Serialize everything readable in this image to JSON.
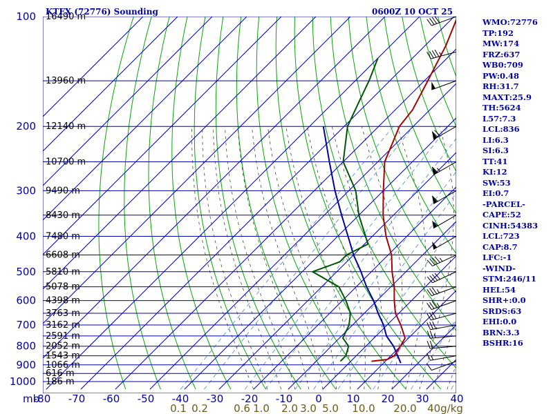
{
  "chart_data": {
    "type": "skew-t sounding",
    "title_left": "KTFX (72776) Sounding",
    "title_right": "0600Z 10 OCT 25",
    "pressure_ticks": [
      100,
      200,
      300,
      400,
      500,
      600,
      700,
      800,
      900,
      1000
    ],
    "pressure_unit_label": "mb",
    "temperature_ticks": [
      -80,
      -70,
      -60,
      -50,
      -40,
      -30,
      -20,
      -10,
      0,
      10,
      20,
      30,
      40
    ],
    "mixing_ratio_labels": [
      "0.1",
      "0.2",
      "0.6",
      "1.0",
      "2.0",
      "3.0",
      "5.0",
      "10.0",
      "20.0",
      "40g/kg"
    ],
    "height_labels": [
      {
        "p": 100,
        "text": "16490 m"
      },
      {
        "p": 150,
        "text": "13960 m"
      },
      {
        "p": 200,
        "text": "12140 m"
      },
      {
        "p": 250,
        "text": "10700 m"
      },
      {
        "p": 300,
        "text": "9490 m"
      },
      {
        "p": 350,
        "text": "8430 m"
      },
      {
        "p": 400,
        "text": "7480 m"
      },
      {
        "p": 450,
        "text": "6608 m"
      },
      {
        "p": 500,
        "text": "5810 m"
      },
      {
        "p": 550,
        "text": "5078 m"
      },
      {
        "p": 600,
        "text": "4398 m"
      },
      {
        "p": 650,
        "text": "3763 m"
      },
      {
        "p": 700,
        "text": "3162 m"
      },
      {
        "p": 750,
        "text": "2591 m"
      },
      {
        "p": 800,
        "text": "2052 m"
      },
      {
        "p": 850,
        "text": "1543 m"
      },
      {
        "p": 900,
        "text": "1066 m"
      },
      {
        "p": 950,
        "text": "616 m"
      },
      {
        "p": 1000,
        "text": "186 m"
      }
    ],
    "temperature_profile": [
      {
        "p": 880,
        "t": 6
      },
      {
        "p": 870,
        "t": 10
      },
      {
        "p": 850,
        "t": 11
      },
      {
        "p": 800,
        "t": 10
      },
      {
        "p": 760,
        "t": 9
      },
      {
        "p": 700,
        "t": 4
      },
      {
        "p": 650,
        "t": -1
      },
      {
        "p": 600,
        "t": -5
      },
      {
        "p": 550,
        "t": -9
      },
      {
        "p": 500,
        "t": -14
      },
      {
        "p": 450,
        "t": -19
      },
      {
        "p": 400,
        "t": -26
      },
      {
        "p": 350,
        "t": -33
      },
      {
        "p": 300,
        "t": -40
      },
      {
        "p": 250,
        "t": -48
      },
      {
        "p": 200,
        "t": -54
      },
      {
        "p": 180,
        "t": -55
      },
      {
        "p": 150,
        "t": -59
      },
      {
        "p": 120,
        "t": -64
      },
      {
        "p": 100,
        "t": -69
      }
    ],
    "dewpoint_profile": [
      {
        "p": 880,
        "t": -3
      },
      {
        "p": 860,
        "t": -3
      },
      {
        "p": 850,
        "t": -3
      },
      {
        "p": 800,
        "t": -5
      },
      {
        "p": 760,
        "t": -9
      },
      {
        "p": 700,
        "t": -11
      },
      {
        "p": 650,
        "t": -14
      },
      {
        "p": 600,
        "t": -19
      },
      {
        "p": 550,
        "t": -25
      },
      {
        "p": 500,
        "t": -37
      },
      {
        "p": 470,
        "t": -32
      },
      {
        "p": 450,
        "t": -32
      },
      {
        "p": 420,
        "t": -29
      },
      {
        "p": 350,
        "t": -40
      },
      {
        "p": 300,
        "t": -48
      },
      {
        "p": 250,
        "t": -60
      },
      {
        "p": 200,
        "t": -69
      },
      {
        "p": 170,
        "t": -73
      },
      {
        "p": 150,
        "t": -76
      },
      {
        "p": 130,
        "t": -80
      }
    ],
    "parcel_profile": [
      {
        "p": 890,
        "t": 15
      },
      {
        "p": 850,
        "t": 12
      },
      {
        "p": 800,
        "t": 8
      },
      {
        "p": 750,
        "t": 3
      },
      {
        "p": 700,
        "t": -1
      },
      {
        "p": 650,
        "t": -6
      },
      {
        "p": 600,
        "t": -11
      },
      {
        "p": 550,
        "t": -17
      },
      {
        "p": 500,
        "t": -23
      },
      {
        "p": 450,
        "t": -30
      },
      {
        "p": 400,
        "t": -37
      },
      {
        "p": 350,
        "t": -45
      },
      {
        "p": 300,
        "t": -54
      },
      {
        "p": 250,
        "t": -64
      },
      {
        "p": 200,
        "t": -76
      }
    ],
    "wind_barbs": [
      {
        "p": 880,
        "dir": 250,
        "kt": 10
      },
      {
        "p": 850,
        "dir": 260,
        "kt": 15
      },
      {
        "p": 800,
        "dir": 265,
        "kt": 20
      },
      {
        "p": 750,
        "dir": 265,
        "kt": 25
      },
      {
        "p": 700,
        "dir": 260,
        "kt": 30
      },
      {
        "p": 650,
        "dir": 255,
        "kt": 30
      },
      {
        "p": 600,
        "dir": 250,
        "kt": 35
      },
      {
        "p": 550,
        "dir": 250,
        "kt": 35
      },
      {
        "p": 500,
        "dir": 245,
        "kt": 40
      },
      {
        "p": 450,
        "dir": 245,
        "kt": 45
      },
      {
        "p": 400,
        "dir": 240,
        "kt": 50
      },
      {
        "p": 350,
        "dir": 240,
        "kt": 55
      },
      {
        "p": 300,
        "dir": 240,
        "kt": 60
      },
      {
        "p": 250,
        "dir": 240,
        "kt": 65
      },
      {
        "p": 200,
        "dir": 240,
        "kt": 70
      },
      {
        "p": 150,
        "dir": 250,
        "kt": 50
      },
      {
        "p": 125,
        "dir": 255,
        "kt": 45
      },
      {
        "p": 100,
        "dir": 250,
        "kt": 40
      }
    ],
    "indices": [
      "WMO:72776",
      "TP:192",
      "MW:174",
      "FRZ:637",
      "WB0:709",
      "PW:0.48",
      "RH:31.7",
      "MAXT:25.9",
      "TH:5624",
      "L57:7.3",
      "LCL:836",
      "LI:6.3",
      "SI:6.3",
      "TT:41",
      "KI:12",
      "SW:53",
      "EI:0.7",
      "-PARCEL-",
      "CAPE:52",
      "CINH:54383",
      "LCL:723",
      "CAP:8.7",
      "LFC:-1",
      "-WIND-",
      "STM:246/11",
      "HEL:54",
      "SHR+:0.0",
      "SRDS:63",
      "EHI:0.0",
      "BRN:3.3",
      "BSHR:16"
    ],
    "colors": {
      "isobar": "#0000aa",
      "isotherm": "#0000aa",
      "dry_adiabat": "#00aa00",
      "moist_adiabat": "#444444",
      "mixing_ratio": "#4488dd",
      "temperature": "#aa0000",
      "dewpoint": "#005500",
      "parcel": "#0000aa",
      "wind": "#000000",
      "labels": "#0000aa",
      "mix_labels": "#6b5a1a"
    }
  }
}
